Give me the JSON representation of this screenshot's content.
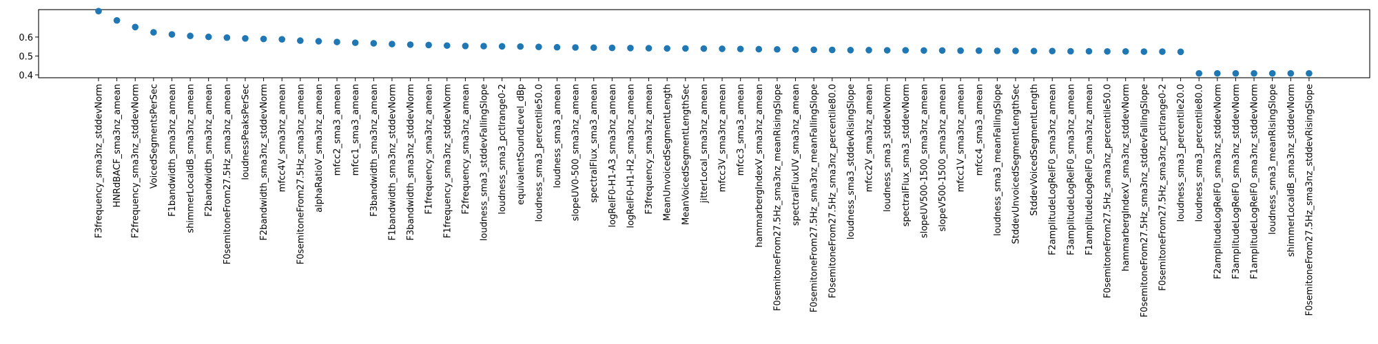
{
  "chart_data": {
    "type": "scatter",
    "title": "",
    "xlabel": "",
    "ylabel": "",
    "grid": false,
    "ylim": [
      0.385,
      0.745
    ],
    "yticks": [
      0.4,
      0.5,
      0.6
    ],
    "ytick_labels": [
      "0.4",
      "0.5",
      "0.6"
    ],
    "point_color": "#1f77b4",
    "categories": [
      "F3frequency_sma3nz_stddevNorm",
      "HNRdBACF_sma3nz_amean",
      "F2frequency_sma3nz_stddevNorm",
      "VoicedSegmentsPerSec",
      "F1bandwidth_sma3nz_amean",
      "shimmerLocaldB_sma3nz_amean",
      "F2bandwidth_sma3nz_amean",
      "F0semitoneFrom27.5Hz_sma3nz_amean",
      "loudnessPeaksPerSec",
      "F2bandwidth_sma3nz_stddevNorm",
      "mfcc4V_sma3nz_amean",
      "F0semitoneFrom27.5Hz_sma3nz_amean",
      "alphaRatioV_sma3nz_amean",
      "mfcc2_sma3_amean",
      "mfcc1_sma3_amean",
      "F3bandwidth_sma3nz_amean",
      "F1bandwidth_sma3nz_stddevNorm",
      "F3bandwidth_sma3nz_stddevNorm",
      "F1frequency_sma3nz_amean",
      "F1frequency_sma3nz_stddevNorm",
      "F2frequency_sma3nz_amean",
      "loudness_sma3_stddevFallingSlope",
      "loudness_sma3_pctlrange0-2",
      "equivalentSoundLevel_dBp",
      "loudness_sma3_percentile50.0",
      "loudness_sma3_amean",
      "slopeUV0-500_sma3nz_amean",
      "spectralFlux_sma3_amean",
      "logRelF0-H1-A3_sma3nz_amean",
      "logRelF0-H1-H2_sma3nz_amean",
      "F3frequency_sma3nz_amean",
      "MeanUnvoicedSegmentLength",
      "MeanVoicedSegmentLengthSec",
      "jitterLocal_sma3nz_amean",
      "mfcc3V_sma3nz_amean",
      "mfcc3_sma3_amean",
      "hammarbergIndexV_sma3nz_amean",
      "F0semitoneFrom27.5Hz_sma3nz_meanRisingSlope",
      "spectralFluxUV_sma3nz_amean",
      "F0semitoneFrom27.5Hz_sma3nz_meanFallingSlope",
      "F0semitoneFrom27.5Hz_sma3nz_percentile80.0",
      "loudness_sma3_stddevRisingSlope",
      "mfcc2V_sma3nz_amean",
      "loudness_sma3_stddevNorm",
      "spectralFlux_sma3_stddevNorm",
      "slopeUV500-1500_sma3nz_amean",
      "slopeV500-1500_sma3nz_amean",
      "mfcc1V_sma3nz_amean",
      "mfcc4_sma3_amean",
      "loudness_sma3_meanFallingSlope",
      "StddevUnvoicedSegmentLengthSec",
      "StddevVoicedSegmentLength",
      "F2amplitudeLogRelF0_sma3nz_amean",
      "F3amplitudeLogRelF0_sma3nz_amean",
      "F1amplitudeLogRelF0_sma3nz_amean",
      "F0semitoneFrom27.5Hz_sma3nz_percentile50.0",
      "hammarbergIndexV_sma3nz_stddevNorm",
      "F0semitoneFrom27.5Hz_sma3nz_stddevFallingSlope",
      "F0semitoneFrom27.5Hz_sma3nz_pctlrange0-2",
      "loudness_sma3_percentile20.0",
      "loudness_sma3_percentile80.0",
      "F2amplitudeLogRelF0_sma3nz_stddevNorm",
      "F3amplitudeLogRelF0_sma3nz_stddevNorm",
      "F1amplitudeLogRelF0_sma3nz_stddevNorm",
      "loudness_sma3_meanRisingSlope",
      "shimmerLocaldB_sma3nz_stddevNorm",
      "F0semitoneFrom27.5Hz_sma3nz_stddevRisingSlope"
    ],
    "values": [
      0.737,
      0.688,
      0.653,
      0.625,
      0.614,
      0.606,
      0.601,
      0.597,
      0.593,
      0.59,
      0.588,
      0.581,
      0.578,
      0.574,
      0.57,
      0.567,
      0.563,
      0.56,
      0.558,
      0.555,
      0.553,
      0.552,
      0.551,
      0.55,
      0.548,
      0.546,
      0.545,
      0.544,
      0.543,
      0.542,
      0.541,
      0.54,
      0.54,
      0.539,
      0.538,
      0.537,
      0.536,
      0.535,
      0.534,
      0.533,
      0.532,
      0.531,
      0.531,
      0.53,
      0.53,
      0.529,
      0.529,
      0.528,
      0.528,
      0.527,
      0.527,
      0.526,
      0.526,
      0.525,
      0.525,
      0.524,
      0.524,
      0.523,
      0.523,
      0.522,
      0.408,
      0.408,
      0.408,
      0.408,
      0.408,
      0.408,
      0.408
    ]
  }
}
